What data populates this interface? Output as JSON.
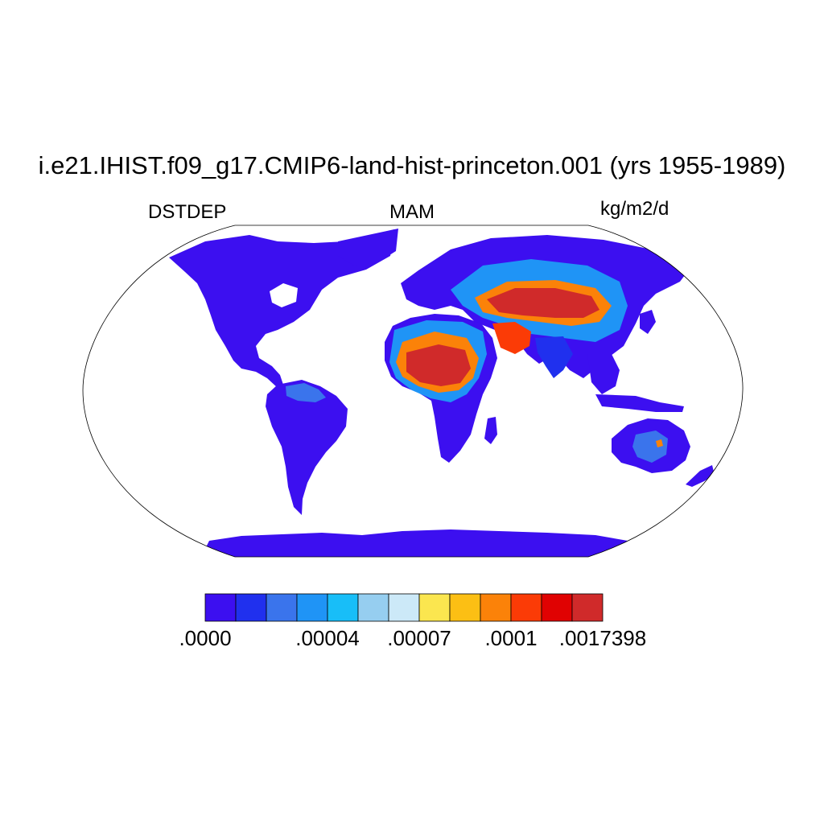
{
  "title": "i.e21.IHIST.f09_g17.CMIP6-land-hist-princeton.001 (yrs 1955-1989)",
  "left_label": "DSTDEP",
  "center_label": "MAM",
  "right_label": "kg/m2/d",
  "map": {
    "projection": "Robinson",
    "variable": "DSTDEP",
    "season": "MAM",
    "units": "kg/m2/d",
    "ocean_color": "#ffffff",
    "coastline_color": "#000000"
  },
  "colorbar": {
    "colors": [
      "#3c0ff0",
      "#2030ee",
      "#3a74ec",
      "#1f94f6",
      "#18bef8",
      "#96cef0",
      "#cce9f8",
      "#fbe64f",
      "#fcbf14",
      "#fb8209",
      "#fb3b06",
      "#e00202",
      "#d02a2a"
    ],
    "tick_labels": [
      {
        "label": ".0000",
        "after_bin": 0
      },
      {
        "label": ".00004",
        "after_bin": 4
      },
      {
        "label": ".00007",
        "after_bin": 7
      },
      {
        "label": ".0001",
        "after_bin": 10
      },
      {
        "label": ".0017398",
        "after_bin": 13
      }
    ]
  }
}
